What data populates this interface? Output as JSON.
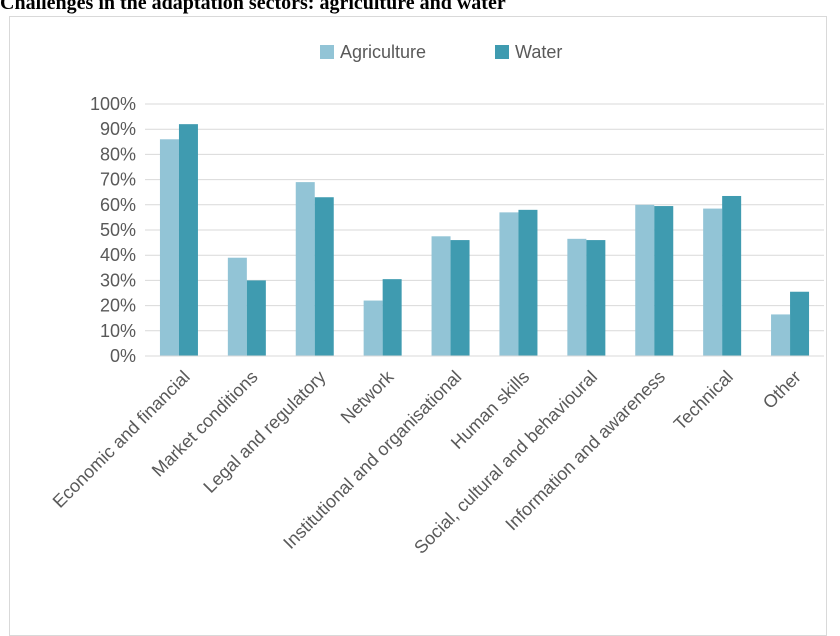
{
  "title": "Challenges in the adaptation sectors: agriculture and water",
  "chart_data": {
    "type": "bar",
    "title": "Challenges in the adaptation sectors: agriculture and water",
    "categories": [
      "Economic and financial",
      "Market conditions",
      "Legal and regulatory",
      "Network",
      "Institutional and organisational",
      "Human skills",
      "Social, cultural and behavioural",
      "Information and awareness",
      "Technical",
      "Other"
    ],
    "series": [
      {
        "name": "Agriculture",
        "color": "#92c4d6",
        "values": [
          86,
          39,
          69,
          22,
          47.5,
          57,
          46.5,
          60,
          58.5,
          16.5
        ]
      },
      {
        "name": "Water",
        "color": "#3f9bb0",
        "values": [
          92,
          30,
          63,
          30.5,
          46,
          58,
          46,
          59.5,
          63.5,
          25.5
        ]
      }
    ],
    "y_ticks": [
      "0%",
      "10%",
      "20%",
      "30%",
      "40%",
      "50%",
      "60%",
      "70%",
      "80%",
      "90%",
      "100%"
    ],
    "ylim": [
      0,
      100
    ],
    "y_unit": "%",
    "xlabel": "",
    "ylabel": "",
    "legend_position": "top-center",
    "grid": true
  }
}
